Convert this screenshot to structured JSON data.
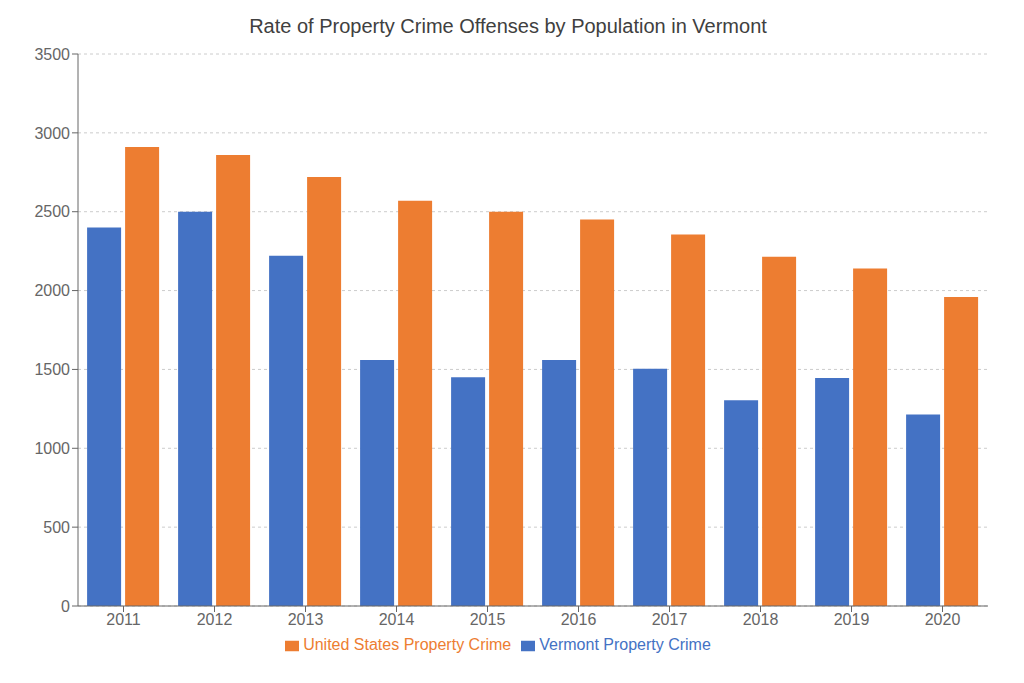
{
  "chart_data": {
    "type": "bar",
    "title": "Rate of Property Crime Offenses by Population in Vermont",
    "categories": [
      "2011",
      "2012",
      "2013",
      "2014",
      "2015",
      "2016",
      "2017",
      "2018",
      "2019",
      "2020"
    ],
    "series": [
      {
        "name": "Vermont Property Crime",
        "color": "#4472C4",
        "values": [
          2400,
          2500,
          2220,
          1560,
          1450,
          1560,
          1505,
          1305,
          1445,
          1215
        ]
      },
      {
        "name": "United States Property Crime",
        "color": "#ED7D31",
        "values": [
          2910,
          2860,
          2720,
          2570,
          2500,
          2450,
          2355,
          2215,
          2140,
          1960
        ]
      }
    ],
    "ylim": [
      0,
      3500
    ],
    "yticks": [
      0,
      500,
      1000,
      1500,
      2000,
      2500,
      3000,
      3500
    ],
    "grid": true,
    "legend": "bottom"
  }
}
